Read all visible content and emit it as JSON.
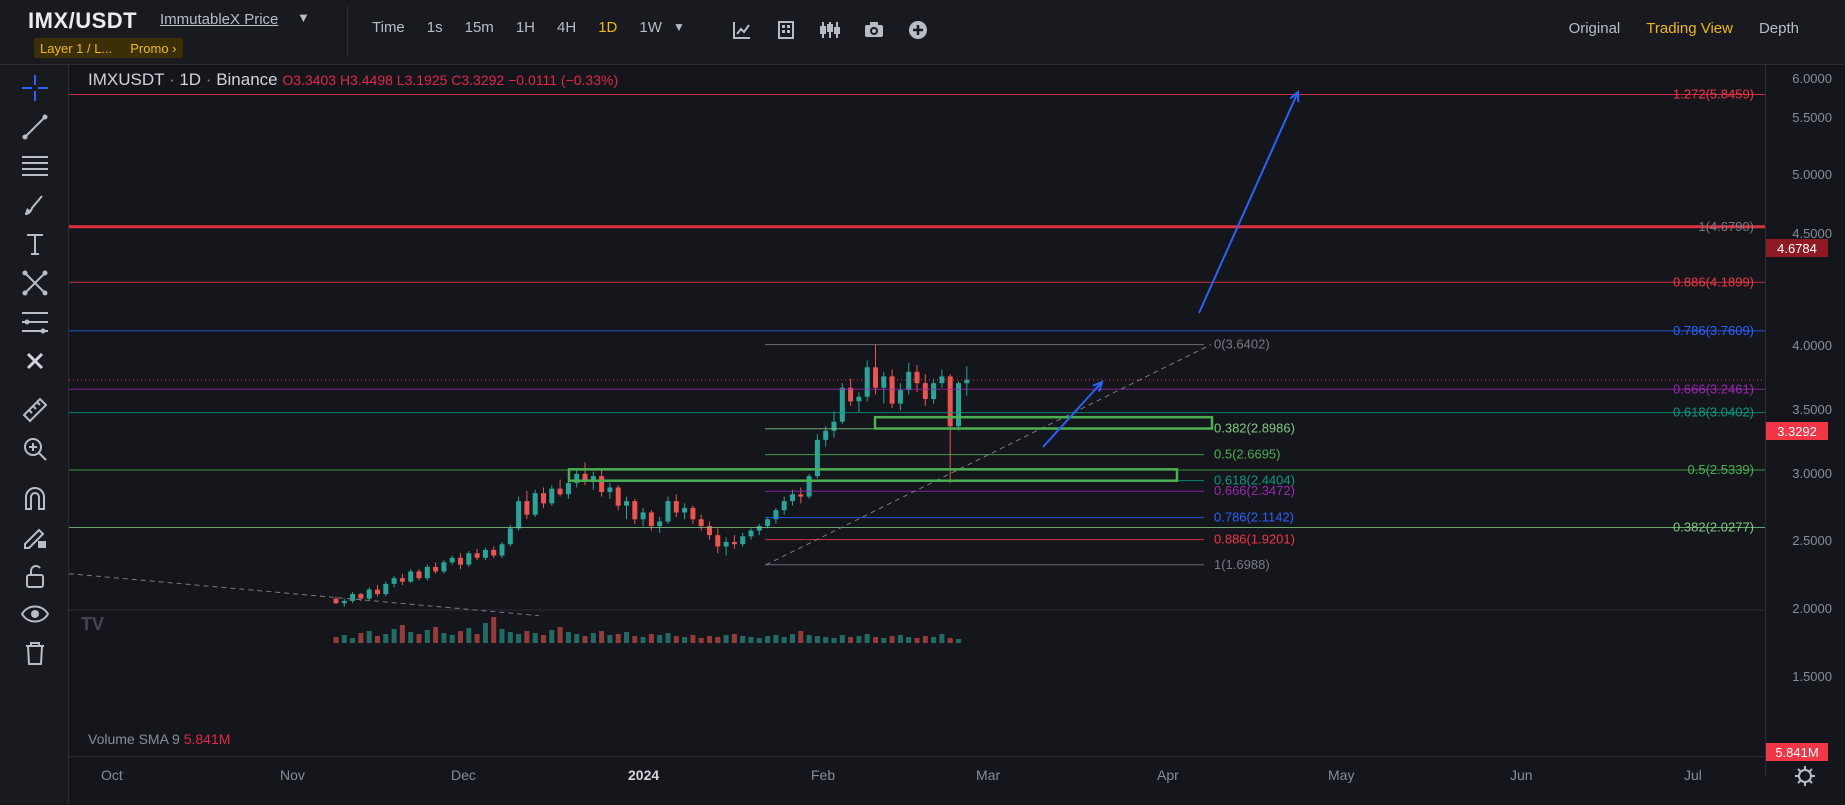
{
  "header": {
    "pair": "IMX/USDT",
    "price_link": "ImmutableX Price",
    "tags": [
      "Layer 1 / L...",
      "Promo ›"
    ],
    "timeframes": [
      {
        "label": "Time",
        "active": false
      },
      {
        "label": "1s",
        "active": false
      },
      {
        "label": "15m",
        "active": false
      },
      {
        "label": "1H",
        "active": false
      },
      {
        "label": "4H",
        "active": false
      },
      {
        "label": "1D",
        "active": true
      },
      {
        "label": "1W",
        "active": false
      }
    ],
    "toolbar_icons": [
      "indicator-icon",
      "layout-icon",
      "candle-type-icon",
      "camera-icon",
      "plus-icon"
    ],
    "views": [
      {
        "label": "Original",
        "active": false
      },
      {
        "label": "Trading View",
        "active": true
      },
      {
        "label": "Depth",
        "active": false
      }
    ]
  },
  "left_toolbar": [
    "crosshair-icon",
    "trendline-icon",
    "horizontal-lines-icon",
    "brush-icon",
    "text-icon",
    "pattern-icon",
    "fib-icon",
    "remove-icon",
    "ruler-icon",
    "zoom-in-icon",
    "magnet-icon",
    "lock-pencil-icon",
    "unlock-icon",
    "eye-icon",
    "trash-icon"
  ],
  "legend": {
    "symbol": "IMXUSDT",
    "interval": "1D",
    "exchange": "Binance",
    "ohlc": "O3.3403 H3.4498 L3.1925 C3.3292 −0.0111 (−0.33%)",
    "volume_label": "Volume SMA 9",
    "volume_value": "5.841M"
  },
  "price_axis": {
    "ticks": [
      "6.0000",
      "5.5000",
      "5.0000",
      "4.5000",
      "4.0000",
      "3.5000",
      "3.0000",
      "2.5000",
      "2.0000",
      "1.5000"
    ],
    "badges": [
      {
        "value": "4.6784",
        "color": "#b71c2c"
      },
      {
        "value": "3.3292",
        "color": "#f23645"
      },
      {
        "value": "5.841M",
        "color": "#f23645"
      }
    ]
  },
  "time_axis": [
    "Oct",
    "Nov",
    "Dec",
    "2024",
    "Feb",
    "Mar",
    "Apr",
    "May",
    "Jun",
    "Jul"
  ],
  "fib_right": [
    {
      "label": "1.272(5.8459)",
      "color": "#f23645"
    },
    {
      "label": "1(4.6790)",
      "color": "#787b86"
    },
    {
      "label": "0.886(4.1899)",
      "color": "#f23645"
    },
    {
      "label": "0.786(3.7609)",
      "color": "#2962ff"
    },
    {
      "label": "0.666(3.2461)",
      "color": "#9c27b0"
    },
    {
      "label": "0.618(3.0402)",
      "color": "#089981"
    },
    {
      "label": "0.5(2.5339)",
      "color": "#4caf50"
    },
    {
      "label": "0.382(2.0277)",
      "color": "#81c784"
    }
  ],
  "fib_mid": [
    {
      "label": "0(3.6402)",
      "color": "#787b86"
    },
    {
      "label": "0.382(2.8986)",
      "color": "#81c784"
    },
    {
      "label": "0.5(2.6695)",
      "color": "#4caf50"
    },
    {
      "label": "0.618(2.4404)",
      "color": "#089981"
    },
    {
      "label": "0.666(2.3472)",
      "color": "#9c27b0"
    },
    {
      "label": "0.786(2.1142)",
      "color": "#2962ff"
    },
    {
      "label": "0.886(1.9201)",
      "color": "#f23645"
    },
    {
      "label": "1(1.6988)",
      "color": "#787b86"
    }
  ],
  "watermark": "TV",
  "colors": {
    "up": "#26a69a",
    "down": "#ef5350",
    "accent": "#f0b90b"
  }
}
